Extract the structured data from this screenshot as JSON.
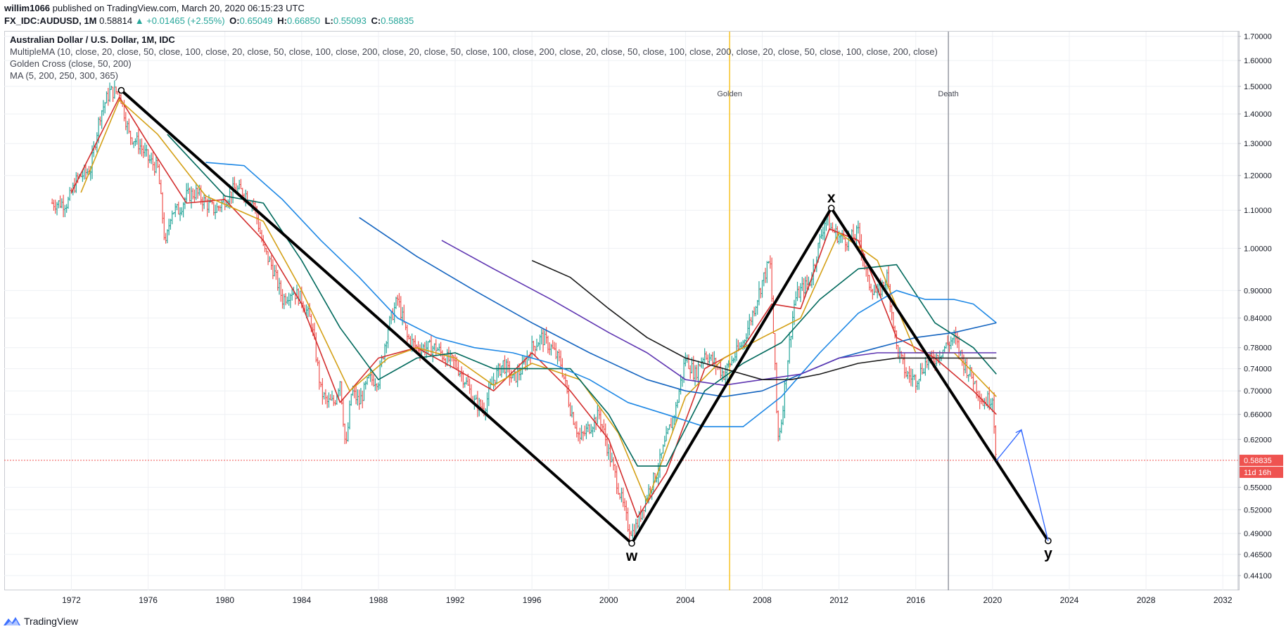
{
  "header": {
    "user": "willim1066",
    "published": "published on TradingView.com, March 20, 2020 06:15:23 UTC",
    "symbol": "FX_IDC:AUDUSD, 1M",
    "last": "0.58814",
    "arrow": "▲",
    "change": "+0.01465 (+2.55%)",
    "o_label": "O:",
    "o_val": "0.65049",
    "h_label": "H:",
    "h_val": "0.66850",
    "l_label": "L:",
    "l_val": "0.55093",
    "c_label": "C:",
    "c_val": "0.58835"
  },
  "legend": {
    "title": "Australian Dollar / U.S. Dollar, 1M, IDC",
    "multiple_ma": "MultipleMA (10, close, 20, close, 50, close, 100, close, 20, close, 50, close, 100, close, 200, close, 20, close, 50, close, 100, close, 200, close, 20, close, 50, close, 100, close, 200, close, 20, close, 50, close, 100, close, 200, close)",
    "golden_cross": "Golden Cross (close, 50, 200)",
    "ma": "MA (5, 200, 250, 300, 365)"
  },
  "footer": {
    "brand": "TradingView"
  },
  "colors": {
    "up": "#26a69a",
    "down": "#ef5350",
    "golden": "#f7c325",
    "death": "#9598a1",
    "price_line": "#ef5350",
    "wave": "#000000",
    "projection": "#2962ff"
  },
  "chart_data": {
    "type": "line",
    "title": "Australian Dollar / U.S. Dollar, 1M, IDC",
    "scale": "log",
    "x_ticks": [
      "1972",
      "1976",
      "1980",
      "1984",
      "1988",
      "1992",
      "1996",
      "2000",
      "2004",
      "2008",
      "2012",
      "2016",
      "2020",
      "2024",
      "2028",
      "2032"
    ],
    "x_range": [
      1968.5,
      2032.8
    ],
    "y_ticks": [
      "1.70000",
      "1.60000",
      "1.50000",
      "1.40000",
      "1.30000",
      "1.20000",
      "1.10000",
      "1.00000",
      "0.90000",
      "0.84000",
      "0.78000",
      "0.74000",
      "0.70000",
      "0.66000",
      "0.62000",
      "0.55000",
      "0.52000",
      "0.49000",
      "0.46500",
      "0.44100"
    ],
    "y_range": [
      0.425,
      1.72
    ],
    "last_price": {
      "value": 0.58835,
      "label": "0.58835",
      "countdown": "11d 16h"
    },
    "vertical_events": [
      {
        "label": "Golden",
        "year": 2006.3,
        "color": "#f7c325"
      },
      {
        "label": "Death",
        "year": 2017.7,
        "color": "#9598a1"
      }
    ],
    "price_series": {
      "name": "AUDUSD close",
      "x": [
        1971.0,
        1971.8,
        1972.3,
        1973.0,
        1973.5,
        1974.0,
        1974.5,
        1975.0,
        1975.5,
        1976.0,
        1976.5,
        1976.9,
        1977.2,
        1977.6,
        1978.0,
        1978.5,
        1979.0,
        1979.5,
        1980.0,
        1980.5,
        1981.0,
        1981.5,
        1982.0,
        1982.5,
        1983.0,
        1983.5,
        1984.0,
        1984.5,
        1985.0,
        1985.3,
        1985.7,
        1986.0,
        1986.3,
        1986.6,
        1987.0,
        1987.5,
        1988.0,
        1988.5,
        1989.0,
        1989.5,
        1990.0,
        1990.5,
        1991.0,
        1991.5,
        1992.0,
        1992.5,
        1993.0,
        1993.5,
        1994.0,
        1994.5,
        1995.0,
        1995.5,
        1996.0,
        1996.5,
        1997.0,
        1997.5,
        1998.0,
        1998.5,
        1999.0,
        1999.5,
        2000.0,
        2000.5,
        2001.0,
        2001.3,
        2001.6,
        2002.0,
        2002.5,
        2003.0,
        2003.5,
        2004.0,
        2004.5,
        2005.0,
        2005.5,
        2006.0,
        2006.5,
        2007.0,
        2007.5,
        2008.0,
        2008.4,
        2008.8,
        2009.0,
        2009.3,
        2009.7,
        2010.0,
        2010.5,
        2011.0,
        2011.3,
        2011.6,
        2012.0,
        2012.5,
        2013.0,
        2013.5,
        2014.0,
        2014.5,
        2015.0,
        2015.5,
        2016.0,
        2016.5,
        2017.0,
        2017.5,
        2018.0,
        2018.5,
        2019.0,
        2019.5,
        2020.0,
        2020.2
      ],
      "y": [
        1.12,
        1.12,
        1.19,
        1.22,
        1.4,
        1.48,
        1.48,
        1.33,
        1.3,
        1.25,
        1.22,
        1.0,
        1.1,
        1.1,
        1.14,
        1.15,
        1.12,
        1.1,
        1.13,
        1.16,
        1.15,
        1.12,
        1.0,
        0.95,
        0.88,
        0.9,
        0.88,
        0.83,
        0.7,
        0.68,
        0.68,
        0.72,
        0.6,
        0.7,
        0.68,
        0.72,
        0.72,
        0.82,
        0.88,
        0.8,
        0.78,
        0.78,
        0.78,
        0.76,
        0.75,
        0.72,
        0.68,
        0.67,
        0.72,
        0.75,
        0.72,
        0.74,
        0.78,
        0.8,
        0.78,
        0.75,
        0.67,
        0.62,
        0.64,
        0.66,
        0.6,
        0.55,
        0.5,
        0.49,
        0.51,
        0.54,
        0.57,
        0.62,
        0.67,
        0.76,
        0.73,
        0.77,
        0.75,
        0.73,
        0.76,
        0.79,
        0.85,
        0.92,
        0.97,
        0.62,
        0.65,
        0.75,
        0.88,
        0.9,
        0.92,
        1.02,
        1.08,
        1.05,
        1.03,
        1.02,
        1.04,
        0.92,
        0.89,
        0.93,
        0.78,
        0.73,
        0.72,
        0.75,
        0.76,
        0.78,
        0.8,
        0.75,
        0.72,
        0.68,
        0.69,
        0.588
      ]
    },
    "series": [
      {
        "name": "MA fast (10)",
        "color": "#d32f2f",
        "x": [
          1972.0,
          1974.5,
          1976.0,
          1978.0,
          1980.0,
          1982.0,
          1984.0,
          1986.0,
          1988.0,
          1990.0,
          1992.0,
          1994.0,
          1996.0,
          1998.0,
          2000.0,
          2001.5,
          2003.0,
          2005.0,
          2007.0,
          2008.5,
          2010.0,
          2011.5,
          2013.0,
          2015.0,
          2017.0,
          2019.0,
          2020.2
        ],
        "y": [
          1.15,
          1.46,
          1.3,
          1.12,
          1.13,
          1.02,
          0.87,
          0.68,
          0.76,
          0.78,
          0.74,
          0.7,
          0.77,
          0.7,
          0.62,
          0.51,
          0.57,
          0.74,
          0.78,
          0.87,
          0.86,
          1.05,
          1.02,
          0.8,
          0.76,
          0.7,
          0.66
        ]
      },
      {
        "name": "MA (20)",
        "color": "#d4a017",
        "x": [
          1972.5,
          1974.5,
          1976.5,
          1979.0,
          1982.0,
          1984.0,
          1986.5,
          1988.5,
          1990.0,
          1992.0,
          1994.0,
          1996.0,
          1998.5,
          2000.5,
          2002.0,
          2004.0,
          2006.0,
          2008.0,
          2010.0,
          2012.0,
          2014.0,
          2016.0,
          2018.0,
          2020.2
        ],
        "y": [
          1.15,
          1.45,
          1.33,
          1.14,
          1.07,
          0.9,
          0.7,
          0.76,
          0.78,
          0.76,
          0.71,
          0.75,
          0.72,
          0.63,
          0.53,
          0.69,
          0.76,
          0.8,
          0.84,
          1.04,
          0.97,
          0.77,
          0.77,
          0.69
        ]
      },
      {
        "name": "MA (50)",
        "color": "#00695c",
        "x": [
          1977.0,
          1980.0,
          1982.0,
          1984.0,
          1986.0,
          1988.0,
          1990.0,
          1992.0,
          1994.0,
          1996.0,
          1998.0,
          2000.0,
          2001.5,
          2003.0,
          2005.0,
          2007.0,
          2009.0,
          2011.0,
          2013.0,
          2015.0,
          2017.0,
          2019.0,
          2020.2
        ],
        "y": [
          1.33,
          1.14,
          1.12,
          0.97,
          0.82,
          0.72,
          0.76,
          0.77,
          0.74,
          0.74,
          0.74,
          0.66,
          0.58,
          0.58,
          0.7,
          0.75,
          0.79,
          0.88,
          0.95,
          0.96,
          0.83,
          0.78,
          0.73
        ]
      },
      {
        "name": "MA (100)",
        "color": "#1e88e5",
        "x": [
          1979.0,
          1981.0,
          1983.0,
          1985.0,
          1987.0,
          1989.0,
          1991.0,
          1993.0,
          1995.0,
          1997.0,
          1999.0,
          2001.0,
          2003.0,
          2005.0,
          2007.0,
          2009.0,
          2011.0,
          2013.0,
          2015.0,
          2016.5,
          2018.0,
          2019.0,
          2020.2
        ],
        "y": [
          1.24,
          1.23,
          1.13,
          1.02,
          0.93,
          0.84,
          0.8,
          0.78,
          0.77,
          0.75,
          0.72,
          0.68,
          0.66,
          0.64,
          0.64,
          0.69,
          0.77,
          0.85,
          0.9,
          0.88,
          0.88,
          0.87,
          0.83
        ]
      },
      {
        "name": "MA (200)",
        "color": "#1565c0",
        "x": [
          1987.0,
          1990.0,
          1993.0,
          1996.0,
          1999.0,
          2002.0,
          2004.0,
          2006.0,
          2008.0,
          2010.0,
          2012.0,
          2014.0,
          2016.0,
          2018.0,
          2020.2
        ],
        "y": [
          1.08,
          0.98,
          0.9,
          0.83,
          0.77,
          0.72,
          0.7,
          0.69,
          0.7,
          0.73,
          0.76,
          0.78,
          0.8,
          0.81,
          0.83
        ]
      },
      {
        "name": "MA (250)",
        "color": "#5e35b1",
        "x": [
          1991.3,
          1994.0,
          1997.0,
          2000.0,
          2002.0,
          2004.0,
          2006.0,
          2008.0,
          2010.0,
          2012.0,
          2014.0,
          2016.0,
          2018.0,
          2020.2
        ],
        "y": [
          1.02,
          0.95,
          0.88,
          0.81,
          0.77,
          0.72,
          0.71,
          0.72,
          0.73,
          0.76,
          0.77,
          0.77,
          0.77,
          0.77
        ]
      },
      {
        "name": "MA (300)",
        "color": "#1a1a1a",
        "x": [
          1996.0,
          1998.0,
          2000.0,
          2002.0,
          2004.0,
          2006.0,
          2008.0,
          2009.5,
          2011.0,
          2013.0,
          2015.0,
          2017.0,
          2019.0,
          2020.2
        ],
        "y": [
          0.97,
          0.93,
          0.86,
          0.8,
          0.76,
          0.74,
          0.72,
          0.72,
          0.73,
          0.75,
          0.76,
          0.76,
          0.76,
          0.76
        ]
      }
    ],
    "wave_points": [
      {
        "label": "",
        "year": 1974.6,
        "value": 1.485
      },
      {
        "label": "w",
        "year": 2001.2,
        "value": 0.478
      },
      {
        "label": "x",
        "year": 2011.6,
        "value": 1.106
      },
      {
        "label": "y",
        "year": 2022.9,
        "value": 0.481
      }
    ],
    "projection": {
      "year": [
        2020.2,
        2021.5,
        2022.9
      ],
      "value": [
        0.588,
        0.635,
        0.481
      ]
    }
  }
}
